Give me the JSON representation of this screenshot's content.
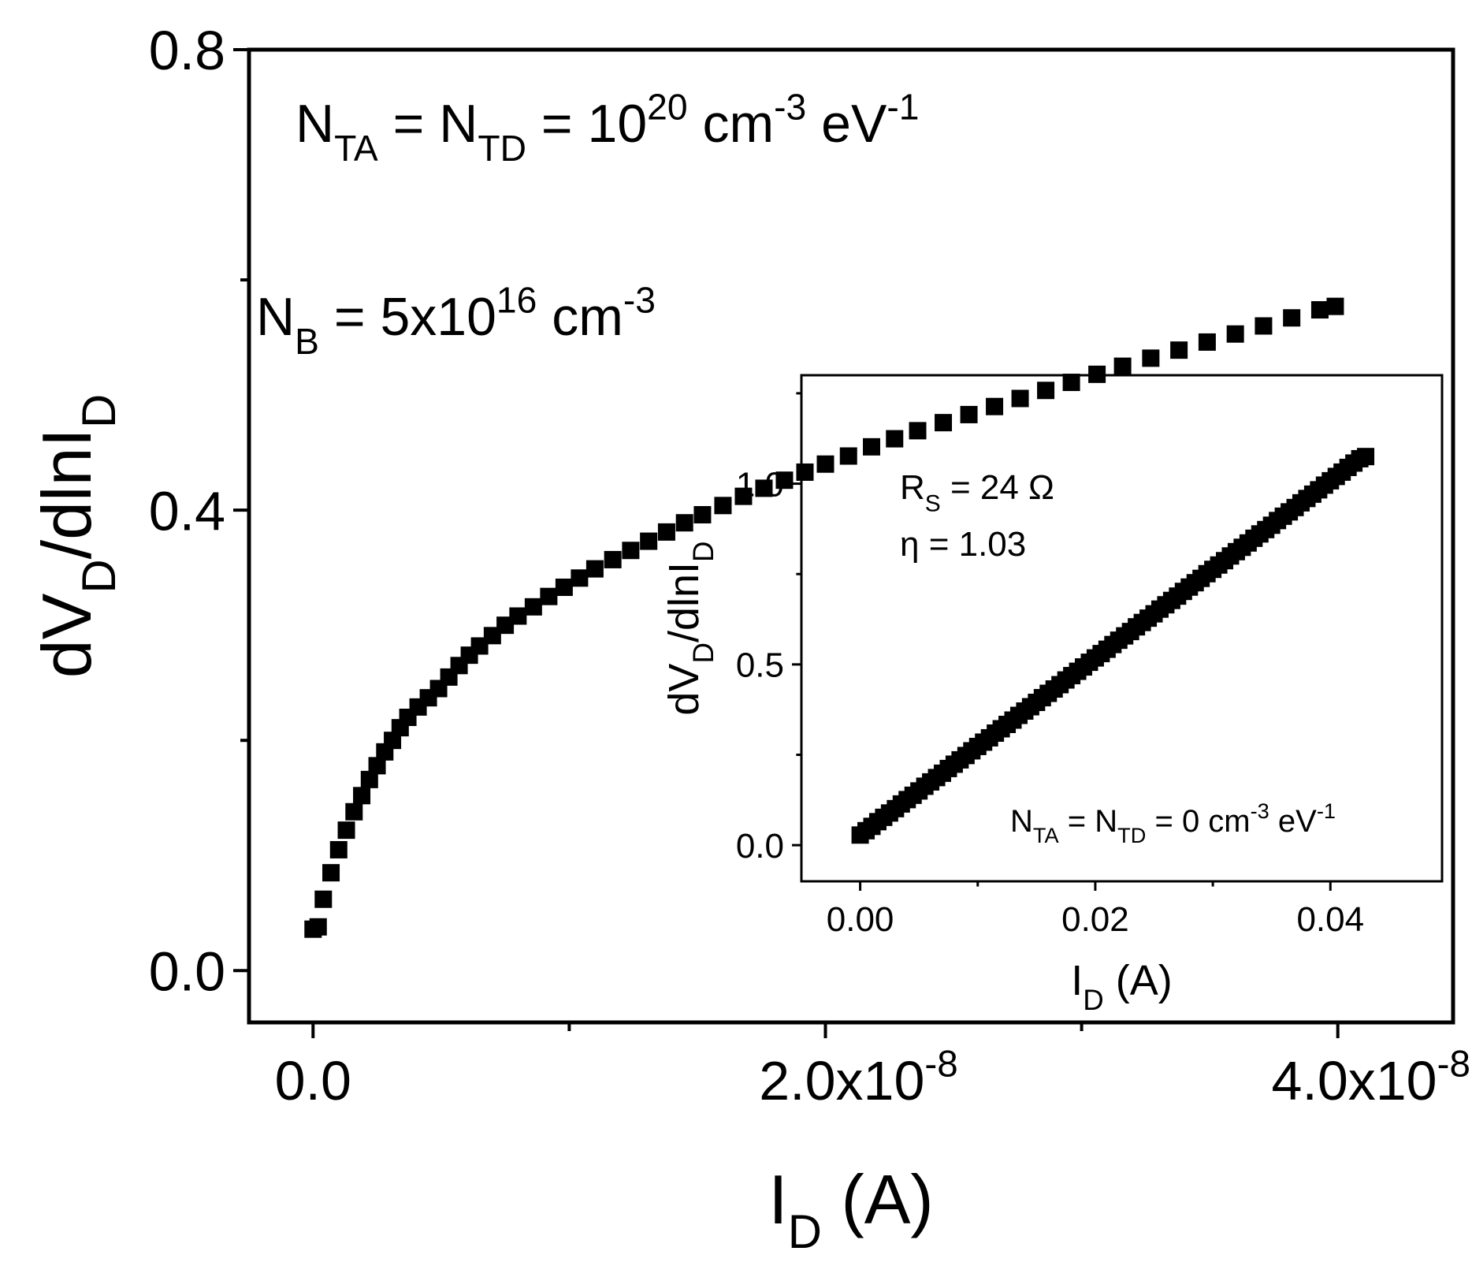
{
  "chart_data": [
    {
      "type": "scatter",
      "title": "",
      "xlabel": {
        "main": "I",
        "sub": "D",
        "tail": " (A)"
      },
      "ylabel": {
        "p1": "dV",
        "s1": "D",
        "p2": "/dlnI",
        "s2": "D"
      },
      "xlim": [
        -2.5e-09,
        4.45e-08
      ],
      "ylim": [
        -0.045,
        0.8
      ],
      "xticks": [
        {
          "value": 0,
          "mantissa": "0.0",
          "exponent": ""
        },
        {
          "value": 2e-08,
          "mantissa": "2.0x10",
          "exponent": "-8"
        },
        {
          "value": 4e-08,
          "mantissa": "4.0x10",
          "exponent": "-8"
        }
      ],
      "yticks": [
        {
          "value": 0,
          "label": "0.0"
        },
        {
          "value": 0.4,
          "label": "0.4"
        },
        {
          "value": 0.8,
          "label": "0.8"
        }
      ],
      "annotations": [
        {
          "parts": [
            {
              "t": "N",
              "s": ""
            },
            {
              "t": "TA",
              "s": "sub"
            },
            {
              "t": " = N",
              "s": ""
            },
            {
              "t": "TD",
              "s": "sub"
            },
            {
              "t": " = 10",
              "s": ""
            },
            {
              "t": "20",
              "s": "sup"
            },
            {
              "t": " cm",
              "s": ""
            },
            {
              "t": "-3",
              "s": "sup"
            },
            {
              "t": " eV",
              "s": ""
            },
            {
              "t": "-1",
              "s": "sup"
            }
          ]
        },
        {
          "parts": [
            {
              "t": "N",
              "s": ""
            },
            {
              "t": "B",
              "s": "sub"
            },
            {
              "t": " = 5x10",
              "s": ""
            },
            {
              "t": "16",
              "s": "sup"
            },
            {
              "t": " cm",
              "s": ""
            },
            {
              "t": "-3",
              "s": "sup"
            }
          ]
        }
      ],
      "series": [
        {
          "marker": "square",
          "color": "#000000",
          "points": [
            [
              0,
              0.036
            ],
            [
              2e-10,
              0.038
            ],
            [
              4e-10,
              0.062
            ],
            [
              7e-10,
              0.085
            ],
            [
              1e-09,
              0.105
            ],
            [
              1.3e-09,
              0.122
            ],
            [
              1.6e-09,
              0.138
            ],
            [
              1.9e-09,
              0.152
            ],
            [
              2.2e-09,
              0.166
            ],
            [
              2.5e-09,
              0.178
            ],
            [
              2.8e-09,
              0.19
            ],
            [
              3.1e-09,
              0.2
            ],
            [
              3.4e-09,
              0.211
            ],
            [
              3.7e-09,
              0.22
            ],
            [
              4.1e-09,
              0.229
            ],
            [
              4.5e-09,
              0.237
            ],
            [
              4.9e-09,
              0.245
            ],
            [
              5.3e-09,
              0.255
            ],
            [
              5.7e-09,
              0.265
            ],
            [
              6.1e-09,
              0.274
            ],
            [
              6.5e-09,
              0.282
            ],
            [
              7e-09,
              0.291
            ],
            [
              7.5e-09,
              0.3
            ],
            [
              8e-09,
              0.308
            ],
            [
              8.6e-09,
              0.316
            ],
            [
              9.2e-09,
              0.325
            ],
            [
              9.8e-09,
              0.333
            ],
            [
              1.04e-08,
              0.341
            ],
            [
              1.1e-08,
              0.349
            ],
            [
              1.17e-08,
              0.357
            ],
            [
              1.24e-08,
              0.365
            ],
            [
              1.31e-08,
              0.373
            ],
            [
              1.38e-08,
              0.381
            ],
            [
              1.45e-08,
              0.389
            ],
            [
              1.52e-08,
              0.396
            ],
            [
              1.6e-08,
              0.404
            ],
            [
              1.68e-08,
              0.412
            ],
            [
              1.76e-08,
              0.419
            ],
            [
              1.84e-08,
              0.426
            ],
            [
              1.92e-08,
              0.433
            ],
            [
              2e-08,
              0.44
            ],
            [
              2.09e-08,
              0.447
            ],
            [
              2.18e-08,
              0.455
            ],
            [
              2.27e-08,
              0.462
            ],
            [
              2.36e-08,
              0.469
            ],
            [
              2.46e-08,
              0.476
            ],
            [
              2.56e-08,
              0.483
            ],
            [
              2.66e-08,
              0.49
            ],
            [
              2.76e-08,
              0.497
            ],
            [
              2.86e-08,
              0.504
            ],
            [
              2.96e-08,
              0.511
            ],
            [
              3.06e-08,
              0.518
            ],
            [
              3.16e-08,
              0.525
            ],
            [
              3.27e-08,
              0.532
            ],
            [
              3.38e-08,
              0.539
            ],
            [
              3.49e-08,
              0.546
            ],
            [
              3.6e-08,
              0.553
            ],
            [
              3.71e-08,
              0.56
            ],
            [
              3.82e-08,
              0.567
            ],
            [
              3.93e-08,
              0.574
            ],
            [
              3.99e-08,
              0.577
            ]
          ]
        }
      ]
    },
    {
      "type": "scatter",
      "title": "",
      "xlabel": {
        "main": "I",
        "sub": "D",
        "tail": " (A)"
      },
      "ylabel": {
        "p1": "dV",
        "s1": "D",
        "p2": "/dlnI",
        "s2": "D"
      },
      "xlim": [
        -0.005,
        0.0495
      ],
      "ylim": [
        -0.1,
        1.3
      ],
      "xticks": [
        {
          "value": 0,
          "label": "0.00"
        },
        {
          "value": 0.02,
          "label": "0.02"
        },
        {
          "value": 0.04,
          "label": "0.04"
        }
      ],
      "yticks": [
        {
          "value": 0,
          "label": "0.0"
        },
        {
          "value": 0.5,
          "label": "0.5"
        },
        {
          "value": 1,
          "label": "1.0"
        }
      ],
      "annotations": [
        {
          "parts": [
            {
              "t": "R",
              "s": ""
            },
            {
              "t": "S",
              "s": "sub"
            },
            {
              "t": " = 24 Ω",
              "s": ""
            }
          ]
        },
        {
          "parts": [
            {
              "t": "η = 1.03",
              "s": ""
            }
          ]
        },
        {
          "parts": [
            {
              "t": "N",
              "s": ""
            },
            {
              "t": "TA",
              "s": "sub"
            },
            {
              "t": " = N",
              "s": ""
            },
            {
              "t": "TD",
              "s": "sub"
            },
            {
              "t": " = 0 cm",
              "s": ""
            },
            {
              "t": "-3",
              "s": "sup"
            },
            {
              "t": " eV",
              "s": ""
            },
            {
              "t": "-1",
              "s": "sup"
            }
          ]
        }
      ],
      "series": [
        {
          "marker": "square",
          "color": "#000000",
          "points": [
            [
              0,
              0.028
            ],
            [
              0.0005,
              0.04
            ],
            [
              0.001,
              0.052
            ],
            [
              0.0015,
              0.065
            ],
            [
              0.002,
              0.077
            ],
            [
              0.0025,
              0.089
            ],
            [
              0.003,
              0.101
            ],
            [
              0.0035,
              0.114
            ],
            [
              0.004,
              0.126
            ],
            [
              0.0045,
              0.138
            ],
            [
              0.005,
              0.15
            ],
            [
              0.0055,
              0.163
            ],
            [
              0.006,
              0.175
            ],
            [
              0.0065,
              0.187
            ],
            [
              0.007,
              0.199
            ],
            [
              0.0075,
              0.212
            ],
            [
              0.008,
              0.224
            ],
            [
              0.0085,
              0.236
            ],
            [
              0.009,
              0.248
            ],
            [
              0.0095,
              0.261
            ],
            [
              0.01,
              0.273
            ],
            [
              0.0105,
              0.285
            ],
            [
              0.011,
              0.297
            ],
            [
              0.0115,
              0.31
            ],
            [
              0.012,
              0.322
            ],
            [
              0.0125,
              0.334
            ],
            [
              0.013,
              0.346
            ],
            [
              0.0135,
              0.359
            ],
            [
              0.014,
              0.371
            ],
            [
              0.0145,
              0.383
            ],
            [
              0.015,
              0.395
            ],
            [
              0.0155,
              0.408
            ],
            [
              0.016,
              0.42
            ],
            [
              0.0165,
              0.432
            ],
            [
              0.017,
              0.444
            ],
            [
              0.0175,
              0.457
            ],
            [
              0.018,
              0.469
            ],
            [
              0.0185,
              0.481
            ],
            [
              0.019,
              0.493
            ],
            [
              0.0195,
              0.506
            ],
            [
              0.02,
              0.518
            ],
            [
              0.0205,
              0.53
            ],
            [
              0.021,
              0.542
            ],
            [
              0.0215,
              0.555
            ],
            [
              0.022,
              0.567
            ],
            [
              0.0225,
              0.579
            ],
            [
              0.023,
              0.591
            ],
            [
              0.0235,
              0.604
            ],
            [
              0.024,
              0.616
            ],
            [
              0.0245,
              0.628
            ],
            [
              0.025,
              0.64
            ],
            [
              0.0255,
              0.653
            ],
            [
              0.026,
              0.665
            ],
            [
              0.0265,
              0.677
            ],
            [
              0.027,
              0.689
            ],
            [
              0.0275,
              0.702
            ],
            [
              0.028,
              0.714
            ],
            [
              0.0285,
              0.726
            ],
            [
              0.029,
              0.738
            ],
            [
              0.0295,
              0.751
            ],
            [
              0.03,
              0.763
            ],
            [
              0.0305,
              0.775
            ],
            [
              0.031,
              0.787
            ],
            [
              0.0315,
              0.8
            ],
            [
              0.032,
              0.812
            ],
            [
              0.0325,
              0.824
            ],
            [
              0.033,
              0.836
            ],
            [
              0.0335,
              0.849
            ],
            [
              0.034,
              0.861
            ],
            [
              0.0345,
              0.873
            ],
            [
              0.035,
              0.885
            ],
            [
              0.0355,
              0.898
            ],
            [
              0.036,
              0.91
            ],
            [
              0.0365,
              0.922
            ],
            [
              0.037,
              0.934
            ],
            [
              0.0375,
              0.947
            ],
            [
              0.038,
              0.959
            ],
            [
              0.0385,
              0.971
            ],
            [
              0.039,
              0.983
            ],
            [
              0.0395,
              0.996
            ],
            [
              0.04,
              1.008
            ],
            [
              0.0405,
              1.02
            ],
            [
              0.041,
              1.032
            ],
            [
              0.0415,
              1.045
            ],
            [
              0.042,
              1.057
            ],
            [
              0.0425,
              1.069
            ],
            [
              0.043,
              1.075
            ]
          ]
        }
      ]
    }
  ]
}
